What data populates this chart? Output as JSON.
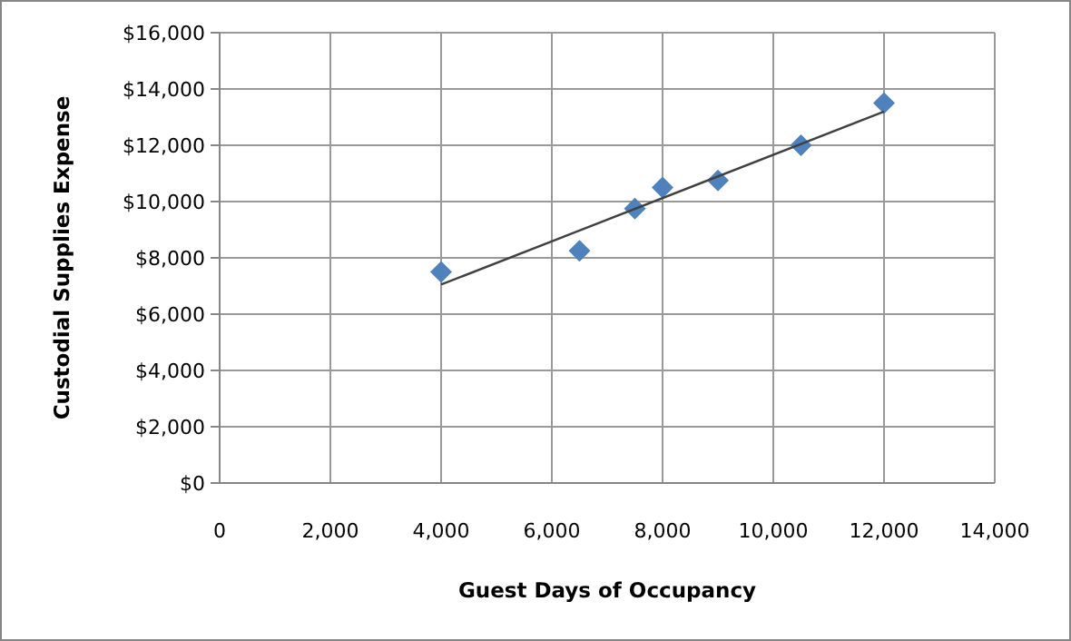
{
  "chart_data": {
    "type": "scatter",
    "xlabel": "Guest Days of Occupancy",
    "ylabel": "Custodial Supplies Expense",
    "xlim": [
      0,
      14000
    ],
    "xticks": [
      {
        "value": 0,
        "label": "0"
      },
      {
        "value": 2000,
        "label": "2,000"
      },
      {
        "value": 4000,
        "label": "4,000"
      },
      {
        "value": 6000,
        "label": "6,000"
      },
      {
        "value": 8000,
        "label": "8,000"
      },
      {
        "value": 10000,
        "label": "10,000"
      },
      {
        "value": 12000,
        "label": "12,000"
      },
      {
        "value": 14000,
        "label": "14,000"
      }
    ],
    "ylim": [
      0,
      16000
    ],
    "yticks": [
      {
        "value": 0,
        "label": "$0"
      },
      {
        "value": 2000,
        "label": "$2,000"
      },
      {
        "value": 4000,
        "label": "$4,000"
      },
      {
        "value": 6000,
        "label": "$6,000"
      },
      {
        "value": 8000,
        "label": "$8,000"
      },
      {
        "value": 10000,
        "label": "$10,000"
      },
      {
        "value": 12000,
        "label": "$12,000"
      },
      {
        "value": 14000,
        "label": "$14,000"
      },
      {
        "value": 16000,
        "label": "$16,000"
      }
    ],
    "grid": true,
    "series": [
      {
        "marker": "diamond",
        "color": "#4f81bd",
        "x": [
          4000,
          6500,
          7500,
          8000,
          9000,
          10500,
          12000
        ],
        "values": [
          7500,
          8250,
          9750,
          10500,
          10750,
          12000,
          13500
        ]
      },
      {
        "type": "line",
        "marker": "none",
        "color": "#404040",
        "x": [
          4000,
          12000
        ],
        "values": [
          7050,
          13200
        ]
      }
    ]
  }
}
